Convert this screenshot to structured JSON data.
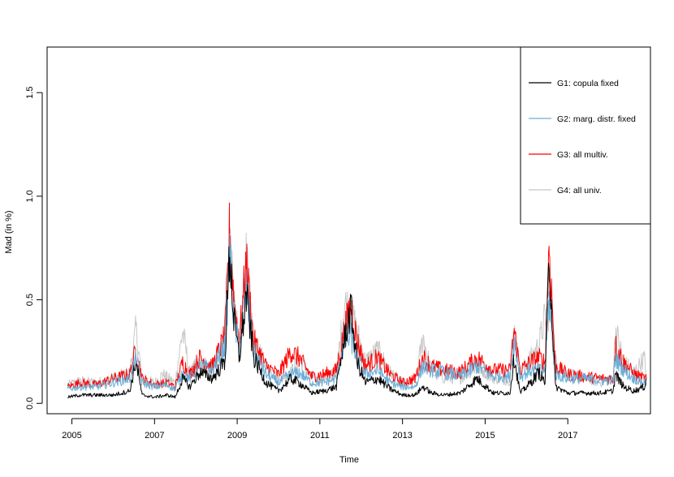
{
  "chart_data": {
    "type": "line",
    "title": "",
    "xlabel": "Time",
    "ylabel": "Mad (in %)",
    "xlim": [
      2004.4,
      2019.0
    ],
    "ylim": [
      -0.05,
      1.72
    ],
    "x_ticks": [
      2005,
      2007,
      2009,
      2011,
      2013,
      2015,
      2017
    ],
    "x_tick_labels": [
      "2005",
      "2007",
      "2009",
      "2011",
      "2013",
      "2015",
      "2017"
    ],
    "y_ticks": [
      0.0,
      0.5,
      1.0,
      1.5
    ],
    "y_tick_labels": [
      "0.0",
      "0.5",
      "1.0",
      "1.5"
    ],
    "grid": false,
    "legend_position": "top-right",
    "series": [
      {
        "name": "G4: all univ.",
        "color": "#c8c8c8",
        "points": [
          [
            2004.9,
            0.09
          ],
          [
            2005.2,
            0.11
          ],
          [
            2005.6,
            0.1
          ],
          [
            2006.0,
            0.12
          ],
          [
            2006.4,
            0.15
          ],
          [
            2006.55,
            0.36
          ],
          [
            2006.7,
            0.12
          ],
          [
            2007.0,
            0.1
          ],
          [
            2007.2,
            0.14
          ],
          [
            2007.5,
            0.1
          ],
          [
            2007.68,
            0.35
          ],
          [
            2007.85,
            0.15
          ],
          [
            2008.1,
            0.2
          ],
          [
            2008.4,
            0.16
          ],
          [
            2008.7,
            0.3
          ],
          [
            2008.82,
            0.8
          ],
          [
            2008.92,
            0.45
          ],
          [
            2009.05,
            0.3
          ],
          [
            2009.22,
            0.68
          ],
          [
            2009.4,
            0.3
          ],
          [
            2009.7,
            0.18
          ],
          [
            2010.0,
            0.12
          ],
          [
            2010.3,
            0.15
          ],
          [
            2010.5,
            0.22
          ],
          [
            2010.8,
            0.12
          ],
          [
            2011.1,
            0.12
          ],
          [
            2011.4,
            0.15
          ],
          [
            2011.6,
            0.48
          ],
          [
            2011.75,
            0.45
          ],
          [
            2011.9,
            0.35
          ],
          [
            2012.1,
            0.2
          ],
          [
            2012.4,
            0.26
          ],
          [
            2012.7,
            0.15
          ],
          [
            2013.0,
            0.1
          ],
          [
            2013.3,
            0.1
          ],
          [
            2013.5,
            0.32
          ],
          [
            2013.7,
            0.15
          ],
          [
            2014.0,
            0.12
          ],
          [
            2014.4,
            0.12
          ],
          [
            2014.8,
            0.18
          ],
          [
            2015.2,
            0.12
          ],
          [
            2015.6,
            0.11
          ],
          [
            2015.7,
            0.36
          ],
          [
            2015.85,
            0.15
          ],
          [
            2016.1,
            0.22
          ],
          [
            2016.3,
            0.28
          ],
          [
            2016.45,
            0.42
          ],
          [
            2016.55,
            0.45
          ],
          [
            2016.7,
            0.2
          ],
          [
            2017.0,
            0.14
          ],
          [
            2017.4,
            0.12
          ],
          [
            2017.8,
            0.1
          ],
          [
            2018.1,
            0.12
          ],
          [
            2018.15,
            0.36
          ],
          [
            2018.35,
            0.2
          ],
          [
            2018.6,
            0.15
          ],
          [
            2018.85,
            0.22
          ],
          [
            2018.9,
            0.13
          ]
        ]
      },
      {
        "name": "G3: all multiv.",
        "color": "#ff0000",
        "points": [
          [
            2004.9,
            0.08
          ],
          [
            2005.2,
            0.1
          ],
          [
            2005.6,
            0.09
          ],
          [
            2006.0,
            0.12
          ],
          [
            2006.4,
            0.14
          ],
          [
            2006.55,
            0.26
          ],
          [
            2006.7,
            0.12
          ],
          [
            2007.0,
            0.09
          ],
          [
            2007.3,
            0.1
          ],
          [
            2007.5,
            0.08
          ],
          [
            2007.68,
            0.2
          ],
          [
            2007.85,
            0.14
          ],
          [
            2008.1,
            0.22
          ],
          [
            2008.4,
            0.18
          ],
          [
            2008.7,
            0.32
          ],
          [
            2008.82,
            0.84
          ],
          [
            2008.92,
            0.5
          ],
          [
            2009.05,
            0.3
          ],
          [
            2009.22,
            0.67
          ],
          [
            2009.4,
            0.3
          ],
          [
            2009.7,
            0.18
          ],
          [
            2010.0,
            0.14
          ],
          [
            2010.3,
            0.25
          ],
          [
            2010.5,
            0.22
          ],
          [
            2010.8,
            0.13
          ],
          [
            2011.1,
            0.14
          ],
          [
            2011.4,
            0.16
          ],
          [
            2011.6,
            0.35
          ],
          [
            2011.75,
            0.48
          ],
          [
            2011.9,
            0.3
          ],
          [
            2012.1,
            0.18
          ],
          [
            2012.4,
            0.22
          ],
          [
            2012.7,
            0.14
          ],
          [
            2013.0,
            0.1
          ],
          [
            2013.3,
            0.12
          ],
          [
            2013.5,
            0.22
          ],
          [
            2013.7,
            0.18
          ],
          [
            2014.0,
            0.16
          ],
          [
            2014.4,
            0.15
          ],
          [
            2014.8,
            0.22
          ],
          [
            2015.2,
            0.16
          ],
          [
            2015.6,
            0.16
          ],
          [
            2015.7,
            0.35
          ],
          [
            2015.85,
            0.16
          ],
          [
            2016.1,
            0.2
          ],
          [
            2016.3,
            0.22
          ],
          [
            2016.45,
            0.2
          ],
          [
            2016.55,
            0.76
          ],
          [
            2016.7,
            0.18
          ],
          [
            2017.0,
            0.14
          ],
          [
            2017.4,
            0.13
          ],
          [
            2017.8,
            0.12
          ],
          [
            2018.1,
            0.12
          ],
          [
            2018.15,
            0.28
          ],
          [
            2018.35,
            0.2
          ],
          [
            2018.6,
            0.14
          ],
          [
            2018.85,
            0.12
          ],
          [
            2018.9,
            0.12
          ]
        ]
      },
      {
        "name": "G2: marg. distr. fixed",
        "color": "#6baed6",
        "points": [
          [
            2004.9,
            0.07
          ],
          [
            2005.2,
            0.08
          ],
          [
            2005.6,
            0.08
          ],
          [
            2006.0,
            0.1
          ],
          [
            2006.4,
            0.12
          ],
          [
            2006.55,
            0.22
          ],
          [
            2006.7,
            0.1
          ],
          [
            2007.0,
            0.08
          ],
          [
            2007.3,
            0.09
          ],
          [
            2007.5,
            0.07
          ],
          [
            2007.68,
            0.15
          ],
          [
            2007.85,
            0.12
          ],
          [
            2008.1,
            0.18
          ],
          [
            2008.4,
            0.16
          ],
          [
            2008.7,
            0.28
          ],
          [
            2008.82,
            0.72
          ],
          [
            2008.92,
            0.42
          ],
          [
            2009.05,
            0.25
          ],
          [
            2009.22,
            0.55
          ],
          [
            2009.4,
            0.25
          ],
          [
            2009.7,
            0.14
          ],
          [
            2010.0,
            0.1
          ],
          [
            2010.3,
            0.14
          ],
          [
            2010.5,
            0.15
          ],
          [
            2010.8,
            0.1
          ],
          [
            2011.1,
            0.1
          ],
          [
            2011.4,
            0.12
          ],
          [
            2011.6,
            0.3
          ],
          [
            2011.75,
            0.32
          ],
          [
            2011.9,
            0.22
          ],
          [
            2012.1,
            0.14
          ],
          [
            2012.4,
            0.16
          ],
          [
            2012.7,
            0.1
          ],
          [
            2013.0,
            0.08
          ],
          [
            2013.3,
            0.08
          ],
          [
            2013.5,
            0.18
          ],
          [
            2013.7,
            0.16
          ],
          [
            2014.0,
            0.15
          ],
          [
            2014.4,
            0.13
          ],
          [
            2014.8,
            0.18
          ],
          [
            2015.2,
            0.13
          ],
          [
            2015.6,
            0.13
          ],
          [
            2015.7,
            0.3
          ],
          [
            2015.85,
            0.13
          ],
          [
            2016.1,
            0.16
          ],
          [
            2016.3,
            0.16
          ],
          [
            2016.45,
            0.16
          ],
          [
            2016.55,
            0.5
          ],
          [
            2016.7,
            0.14
          ],
          [
            2017.0,
            0.12
          ],
          [
            2017.4,
            0.12
          ],
          [
            2017.8,
            0.11
          ],
          [
            2018.1,
            0.11
          ],
          [
            2018.15,
            0.22
          ],
          [
            2018.35,
            0.16
          ],
          [
            2018.6,
            0.12
          ],
          [
            2018.85,
            0.1
          ],
          [
            2018.9,
            0.1
          ]
        ]
      },
      {
        "name": "G1: copula fixed",
        "color": "#000000",
        "points": [
          [
            2004.9,
            0.03
          ],
          [
            2005.2,
            0.04
          ],
          [
            2005.6,
            0.04
          ],
          [
            2006.0,
            0.04
          ],
          [
            2006.4,
            0.06
          ],
          [
            2006.55,
            0.2
          ],
          [
            2006.7,
            0.04
          ],
          [
            2007.0,
            0.03
          ],
          [
            2007.3,
            0.04
          ],
          [
            2007.5,
            0.03
          ],
          [
            2007.68,
            0.12
          ],
          [
            2007.85,
            0.08
          ],
          [
            2008.1,
            0.15
          ],
          [
            2008.4,
            0.12
          ],
          [
            2008.7,
            0.2
          ],
          [
            2008.82,
            0.74
          ],
          [
            2008.92,
            0.4
          ],
          [
            2009.05,
            0.22
          ],
          [
            2009.22,
            0.52
          ],
          [
            2009.4,
            0.22
          ],
          [
            2009.7,
            0.1
          ],
          [
            2010.0,
            0.06
          ],
          [
            2010.3,
            0.12
          ],
          [
            2010.5,
            0.1
          ],
          [
            2010.8,
            0.05
          ],
          [
            2011.1,
            0.06
          ],
          [
            2011.4,
            0.08
          ],
          [
            2011.6,
            0.32
          ],
          [
            2011.75,
            0.45
          ],
          [
            2011.9,
            0.2
          ],
          [
            2012.1,
            0.1
          ],
          [
            2012.4,
            0.12
          ],
          [
            2012.7,
            0.07
          ],
          [
            2013.0,
            0.04
          ],
          [
            2013.3,
            0.04
          ],
          [
            2013.5,
            0.08
          ],
          [
            2013.7,
            0.05
          ],
          [
            2014.0,
            0.04
          ],
          [
            2014.4,
            0.05
          ],
          [
            2014.8,
            0.12
          ],
          [
            2015.2,
            0.05
          ],
          [
            2015.6,
            0.05
          ],
          [
            2015.7,
            0.22
          ],
          [
            2015.85,
            0.05
          ],
          [
            2016.1,
            0.1
          ],
          [
            2016.3,
            0.15
          ],
          [
            2016.45,
            0.1
          ],
          [
            2016.55,
            0.72
          ],
          [
            2016.7,
            0.08
          ],
          [
            2017.0,
            0.05
          ],
          [
            2017.4,
            0.05
          ],
          [
            2017.8,
            0.05
          ],
          [
            2018.1,
            0.06
          ],
          [
            2018.15,
            0.14
          ],
          [
            2018.35,
            0.08
          ],
          [
            2018.6,
            0.06
          ],
          [
            2018.85,
            0.08
          ],
          [
            2018.9,
            0.12
          ]
        ]
      }
    ],
    "legend_entries": [
      {
        "label": "G1: copula fixed",
        "color": "#000000"
      },
      {
        "label": "G2: marg. distr. fixed",
        "color": "#6baed6"
      },
      {
        "label": "G3: all multiv.",
        "color": "#ff0000"
      },
      {
        "label": "G4: all univ.",
        "color": "#c8c8c8"
      }
    ]
  }
}
